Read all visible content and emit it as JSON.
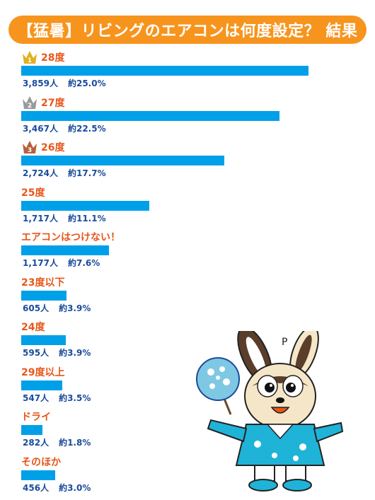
{
  "title": "【猛暑】リビングのエアコンは何度設定？ 結果",
  "colors": {
    "title_bg": "#f7941d",
    "bar": "#00a0e9",
    "label": "#e8561a",
    "stats": "#1a4b9c",
    "gold": "#e0b020",
    "silver": "#9a9a9a",
    "bronze": "#b8603a"
  },
  "chart_data": {
    "type": "bar",
    "orientation": "horizontal",
    "title": "【猛暑】リビングのエアコンは何度設定？ 結果",
    "xlim": [
      0,
      3859
    ],
    "categories": [
      "28度",
      "27度",
      "26度",
      "25度",
      "エアコンはつけない！",
      "23度以下",
      "24度",
      "29度以上",
      "ドライ",
      "そのほか"
    ],
    "values": [
      3859,
      3467,
      2724,
      1717,
      1177,
      605,
      595,
      547,
      282,
      456
    ],
    "count_labels": [
      "3,859人",
      "3,467人",
      "2,724人",
      "1,717人",
      "1,177人",
      "605人",
      "595人",
      "547人",
      "282人",
      "456人"
    ],
    "percent_labels": [
      "約25.0%",
      "約22.5%",
      "約17.7%",
      "約11.1%",
      "約7.6%",
      "約3.9%",
      "約3.9%",
      "約3.5%",
      "約1.8%",
      "約3.0%"
    ],
    "rank_icons": [
      "crown-gold-1-icon",
      "crown-silver-2-icon",
      "crown-bronze-3-icon",
      null,
      null,
      null,
      null,
      null,
      null,
      null
    ],
    "rank_numbers": [
      "1",
      "2",
      "3",
      null,
      null,
      null,
      null,
      null,
      null,
      null
    ]
  }
}
